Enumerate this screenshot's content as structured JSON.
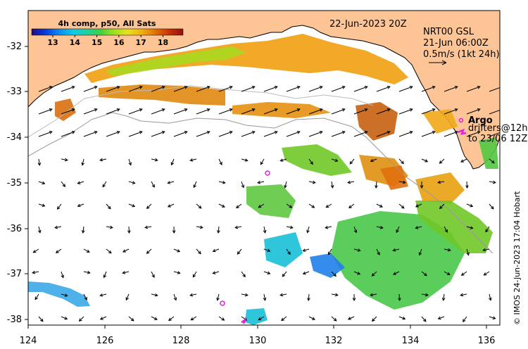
{
  "map": {
    "lon_ticks": [
      "124",
      "126",
      "128",
      "130",
      "132",
      "134",
      "136"
    ],
    "lat_ticks": [
      "-32",
      "-33",
      "-34",
      "-35",
      "-36",
      "-37",
      "-38"
    ],
    "lon_range": [
      124,
      136.3
    ],
    "lat_range": [
      -31.3,
      -38.1
    ]
  },
  "colorbar": {
    "title": "4h comp, p50, All Sats",
    "ticks": [
      "13",
      "14",
      "15",
      "16",
      "17",
      "18"
    ],
    "colors": [
      "#1a0a8c",
      "#0a3cdc",
      "#0a8cf0",
      "#12c8e8",
      "#20d0a0",
      "#40d040",
      "#a0e020",
      "#e8e020",
      "#f0b010",
      "#e07008",
      "#c83008",
      "#901010"
    ]
  },
  "annotations": {
    "date": "22-Jun-2023 20Z",
    "model": "NRT00 GSL",
    "valid_time": "21-Jun 06:00Z",
    "scale": "0.5m/s (1kt 24h)",
    "argo_label": "Argo",
    "drifters_label": "drifters@12h",
    "drifters_to": "to 23/06 12Z",
    "credit": "© IMOS 24-Jun-2023 17:04 Hobart"
  },
  "colors": {
    "land": "#fdc596",
    "marker": "#e020e0",
    "sea": "#ffffff"
  }
}
